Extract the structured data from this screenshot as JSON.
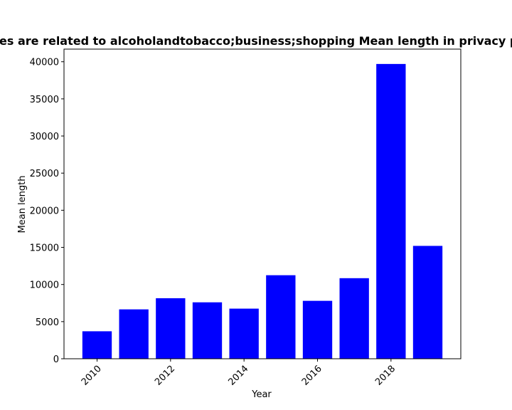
{
  "chart_data": {
    "type": "bar",
    "title": "Policies are related to alcoholandtobacco;business;shopping Mean length in privacy policies",
    "xlabel": "Year",
    "ylabel": "Mean length",
    "x": [
      2010,
      2011,
      2012,
      2013,
      2014,
      2015,
      2016,
      2017,
      2018,
      2019
    ],
    "values": [
      3700,
      6650,
      8150,
      7600,
      6750,
      11250,
      7800,
      10850,
      39700,
      15200
    ],
    "xticks": [
      2010,
      2012,
      2014,
      2016,
      2018
    ],
    "xtick_labels": [
      "2010",
      "2012",
      "2014",
      "2016",
      "2018"
    ],
    "yticks": [
      0,
      5000,
      10000,
      15000,
      20000,
      25000,
      30000,
      35000,
      40000
    ],
    "ytick_labels": [
      "0",
      "5000",
      "10000",
      "15000",
      "20000",
      "25000",
      "30000",
      "35000",
      "40000"
    ],
    "ylim": [
      0,
      41700
    ],
    "xlim": [
      2009.1,
      2019.9
    ],
    "bar_color": "#0000ff",
    "grid": false,
    "legend": "none"
  }
}
